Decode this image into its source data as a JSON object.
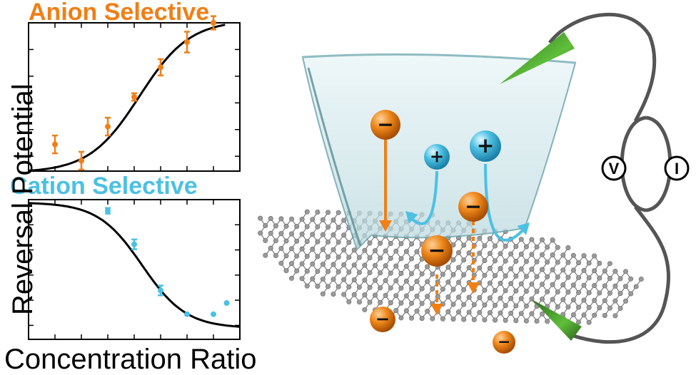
{
  "colors": {
    "anion": "#f07f16",
    "cation": "#4cc0e4",
    "fit": "#000000",
    "graphene_node": "#9a9a9a",
    "graphene_bond": "#7a7a7a",
    "membrane_fill": "#cfe6ea",
    "electrode": "#3f9a2b",
    "wire": "#555555"
  },
  "labels": {
    "anion_title": "Anion Selective",
    "cation_title": "Cation Selective",
    "ylabel": "Reversal Potential",
    "xlabel": "Concentration Ratio"
  },
  "meters": {
    "voltmeter": "V",
    "ammeter": "I"
  },
  "ions": {
    "minus": "−",
    "plus": "+"
  },
  "chart_data": [
    {
      "type": "scatter",
      "title": "Anion Selective",
      "xlabel": "Concentration Ratio",
      "ylabel": "Reversal Potential",
      "xlim": [
        0,
        8
      ],
      "ylim": [
        0,
        10
      ],
      "fit": "sigmoid-rising",
      "points": [
        {
          "x": 1.0,
          "y": 1.8,
          "err": 0.6
        },
        {
          "x": 2.0,
          "y": 0.7,
          "err": 0.6
        },
        {
          "x": 3.0,
          "y": 3.0,
          "err": 0.6
        },
        {
          "x": 4.0,
          "y": 5.0,
          "err": 0.25
        },
        {
          "x": 5.0,
          "y": 7.0,
          "err": 0.55
        },
        {
          "x": 6.0,
          "y": 8.7,
          "err": 0.7
        },
        {
          "x": 7.0,
          "y": 10.0,
          "err": 0.45
        }
      ]
    },
    {
      "type": "scatter",
      "title": "Cation Selective",
      "xlabel": "Concentration Ratio",
      "ylabel": "Reversal Potential",
      "xlim": [
        0,
        8
      ],
      "ylim": [
        0,
        10
      ],
      "fit": "sigmoid-falling",
      "points": [
        {
          "x": 3.0,
          "y": 9.2,
          "err": 0.2
        },
        {
          "x": 4.0,
          "y": 6.8,
          "err": 0.35
        },
        {
          "x": 5.0,
          "y": 3.5,
          "err": 0.35
        },
        {
          "x": 6.0,
          "y": 1.8,
          "err": 0.0
        },
        {
          "x": 7.0,
          "y": 1.8,
          "err": 0.0
        },
        {
          "x": 7.5,
          "y": 2.6,
          "err": 0.0
        }
      ]
    }
  ]
}
